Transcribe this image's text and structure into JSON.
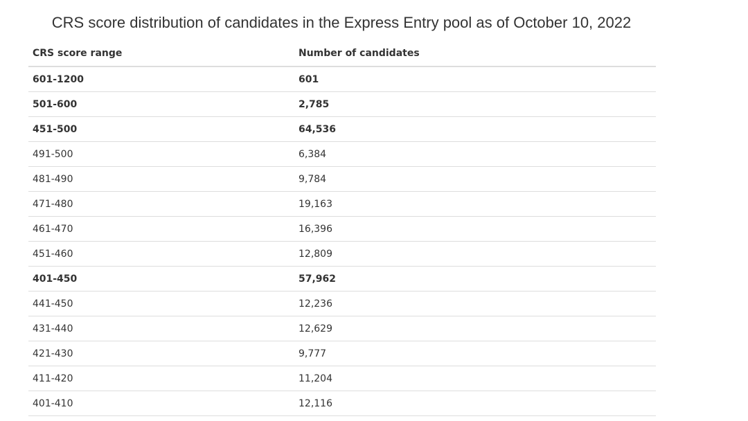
{
  "title": "CRS score distribution of candidates in the Express Entry pool as of October 10, 2022",
  "table": {
    "headers": [
      "CRS score range",
      "Number of candidates"
    ],
    "rows": [
      {
        "range": "601-1200",
        "count": "601",
        "bold": true
      },
      {
        "range": "501-600",
        "count": "2,785",
        "bold": true
      },
      {
        "range": "451-500",
        "count": "64,536",
        "bold": true
      },
      {
        "range": "491-500",
        "count": "6,384",
        "bold": false
      },
      {
        "range": "481-490",
        "count": "9,784",
        "bold": false
      },
      {
        "range": "471-480",
        "count": "19,163",
        "bold": false
      },
      {
        "range": "461-470",
        "count": "16,396",
        "bold": false
      },
      {
        "range": "451-460",
        "count": "12,809",
        "bold": false
      },
      {
        "range": "401-450",
        "count": "57,962",
        "bold": true
      },
      {
        "range": "441-450",
        "count": "12,236",
        "bold": false
      },
      {
        "range": "431-440",
        "count": "12,629",
        "bold": false
      },
      {
        "range": "421-430",
        "count": "9,777",
        "bold": false
      },
      {
        "range": "411-420",
        "count": "11,204",
        "bold": false
      },
      {
        "range": "401-410",
        "count": "12,116",
        "bold": false
      }
    ]
  },
  "colors": {
    "text": "#333333",
    "rule": "#dddddd",
    "background": "#ffffff"
  }
}
